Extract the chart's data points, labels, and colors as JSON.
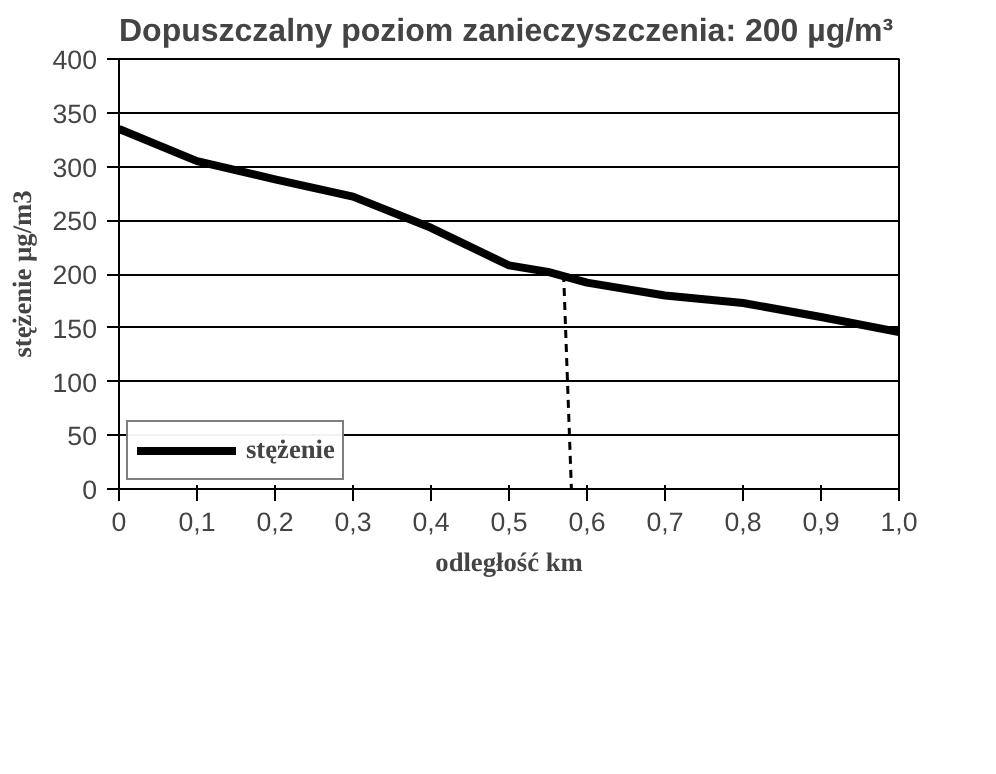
{
  "chart_data": {
    "type": "line",
    "title": "Dopuszczalny poziom zanieczyszczenia: 200 µg/m³",
    "xlabel": "odległość km",
    "ylabel": "stężenie µg/m3",
    "xlim": [
      0,
      1.0
    ],
    "ylim": [
      0,
      400
    ],
    "xticks": [
      0,
      {
        "value": 0.1,
        "label": "0,1"
      },
      {
        "value": 0.2,
        "label": "0,2"
      },
      {
        "value": 0.3,
        "label": "0,3"
      },
      {
        "value": 0.4,
        "label": "0,4"
      },
      {
        "value": 0.5,
        "label": "0,5"
      },
      {
        "value": 0.6,
        "label": "0,6"
      },
      {
        "value": 0.7,
        "label": "0,7"
      },
      {
        "value": 0.8,
        "label": "0,8"
      },
      {
        "value": 0.9,
        "label": "0,9"
      },
      {
        "value": 1.0,
        "label": "1,0"
      }
    ],
    "yticks": [
      0,
      50,
      100,
      150,
      200,
      250,
      300,
      350,
      400
    ],
    "grid": "y",
    "legend": "bottom left",
    "marker": "none",
    "series": [
      {
        "name": "stężenie",
        "color": "#000000",
        "line_style": "solid",
        "x": [
          0,
          0.1,
          0.2,
          0.3,
          0.4,
          0.5,
          0.55,
          0.6,
          0.7,
          0.8,
          0.9,
          1.0
        ],
        "values": [
          335,
          305,
          288,
          272,
          243,
          208,
          202,
          192,
          180,
          173,
          160,
          146
        ]
      },
      {
        "type": "line",
        "color": "#000000",
        "line_style": "dashed",
        "x": [
          0.57,
          0.58
        ],
        "values": [
          200,
          0
        ]
      }
    ]
  }
}
